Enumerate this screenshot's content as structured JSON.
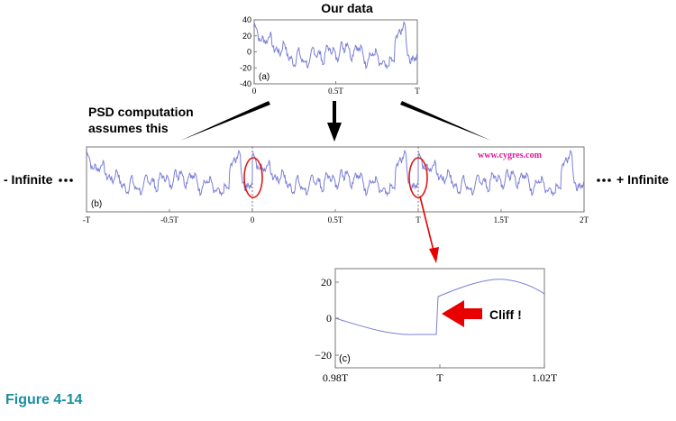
{
  "title": "Our data",
  "caption": "PSD computation assumes this",
  "caption_lines": [
    "PSD computation",
    "assumes this"
  ],
  "left_label": "- Infinite",
  "right_label": "+ Infinite",
  "watermark": "www.cygres.com",
  "figure_label": "Figure 4-14",
  "cliff_label": "Cliff !",
  "colors": {
    "signal": "#7b7fd6",
    "ellipse": "#e01818",
    "arrow_red": "#e80000",
    "watermark": "#e0159a",
    "figure_label": "#1a8fa0",
    "frame": "#777777"
  },
  "panel_a": {
    "tag": "(a)",
    "y_ticks": [
      "40",
      "20",
      "0",
      "-20",
      "-40"
    ],
    "x_ticks": [
      "0",
      "0.5T",
      "T"
    ]
  },
  "panel_b": {
    "tag": "(b)",
    "x_ticks": [
      "-T",
      "-0.5T",
      "0",
      "0.5T",
      "T",
      "1.5T",
      "2T"
    ]
  },
  "panel_c": {
    "tag": "(c)",
    "y_ticks": [
      "20",
      "0",
      "−20"
    ],
    "x_ticks": [
      "0.98T",
      "T",
      "1.02T"
    ]
  }
}
